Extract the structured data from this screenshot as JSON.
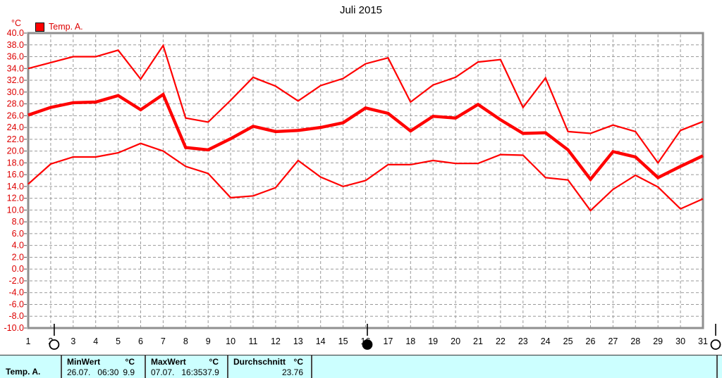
{
  "colors": {
    "line_red": "#ff0000",
    "label_red": "#dd0000",
    "grid_gray": "#999999",
    "frame_gray": "#8f8f8f",
    "panel_bg": "#ccffff"
  },
  "chart_data": {
    "type": "line",
    "title": "Juli 2015",
    "unit_label": "°C",
    "legend_label": "Temp. A.",
    "ylim": [
      -10.0,
      40.0
    ],
    "ytick_step": 2.0,
    "grid": true,
    "x": [
      1,
      2,
      3,
      4,
      5,
      6,
      7,
      8,
      9,
      10,
      11,
      12,
      13,
      14,
      15,
      16,
      17,
      18,
      19,
      20,
      21,
      22,
      23,
      24,
      25,
      26,
      27,
      28,
      29,
      30,
      31
    ],
    "x_tick_labels": [
      "1",
      "2",
      "3",
      "4",
      "5",
      "6",
      "7",
      "8",
      "9",
      "10",
      "11",
      "12",
      "13",
      "14",
      "15",
      "16",
      "17",
      "18",
      "19",
      "20",
      "21",
      "22",
      "23",
      "24",
      "25",
      "26",
      "27",
      "28",
      "29",
      "30",
      "31"
    ],
    "y_tick_labels": [
      "40.0",
      "38.0",
      "36.0",
      "34.0",
      "32.0",
      "30.0",
      "28.0",
      "26.0",
      "24.0",
      "22.0",
      "20.0",
      "18.0",
      "16.0",
      "14.0",
      "12.0",
      "10.0",
      "8.0",
      "6.0",
      "4.0",
      "2.0",
      "0.0",
      "-2.0",
      "-4.0",
      "-6.0",
      "-8.0",
      "-10.0"
    ],
    "series": [
      {
        "name": "max",
        "thick": false,
        "values": [
          34.0,
          35.0,
          36.0,
          36.0,
          37.1,
          32.2,
          37.9,
          25.6,
          24.9,
          28.6,
          32.5,
          31.0,
          28.5,
          31.1,
          32.3,
          34.8,
          35.8,
          28.3,
          31.2,
          32.5,
          35.1,
          35.5,
          27.4,
          32.4,
          23.3,
          23.0,
          24.4,
          23.3,
          18.0,
          23.5,
          25.0
        ]
      },
      {
        "name": "avg",
        "thick": true,
        "values": [
          26.1,
          27.4,
          28.2,
          28.3,
          29.4,
          27.0,
          29.6,
          20.6,
          20.2,
          22.1,
          24.2,
          23.3,
          23.5,
          24.0,
          24.8,
          27.3,
          26.4,
          23.4,
          25.9,
          25.6,
          27.9,
          25.3,
          23.0,
          23.1,
          20.2,
          15.2,
          19.9,
          19.0,
          15.5,
          17.4,
          19.2
        ]
      },
      {
        "name": "min",
        "thick": false,
        "values": [
          14.4,
          17.8,
          19.0,
          19.0,
          19.7,
          21.3,
          20.0,
          17.4,
          16.2,
          12.1,
          12.4,
          13.8,
          18.4,
          15.6,
          14.0,
          15.0,
          17.7,
          17.7,
          18.4,
          17.9,
          17.9,
          19.4,
          19.3,
          15.5,
          15.1,
          9.9,
          13.5,
          15.9,
          13.9,
          10.2,
          11.9
        ]
      }
    ],
    "moon_markers": [
      {
        "day": 2,
        "phase": "full"
      },
      {
        "day": 16,
        "phase": "new"
      },
      {
        "day": 31,
        "phase": "full"
      }
    ]
  },
  "summary_table": {
    "row_label": "Temp. A.",
    "columns": [
      {
        "header": "MinWert",
        "unit": "°C",
        "date": "26.07.",
        "time": "06:30",
        "value": "9.9"
      },
      {
        "header": "MaxWert",
        "unit": "°C",
        "date": "07.07.",
        "time": "16:35",
        "value": "37.9"
      },
      {
        "header": "Durchschnitt",
        "unit": "°C",
        "value": "23.76"
      }
    ]
  }
}
